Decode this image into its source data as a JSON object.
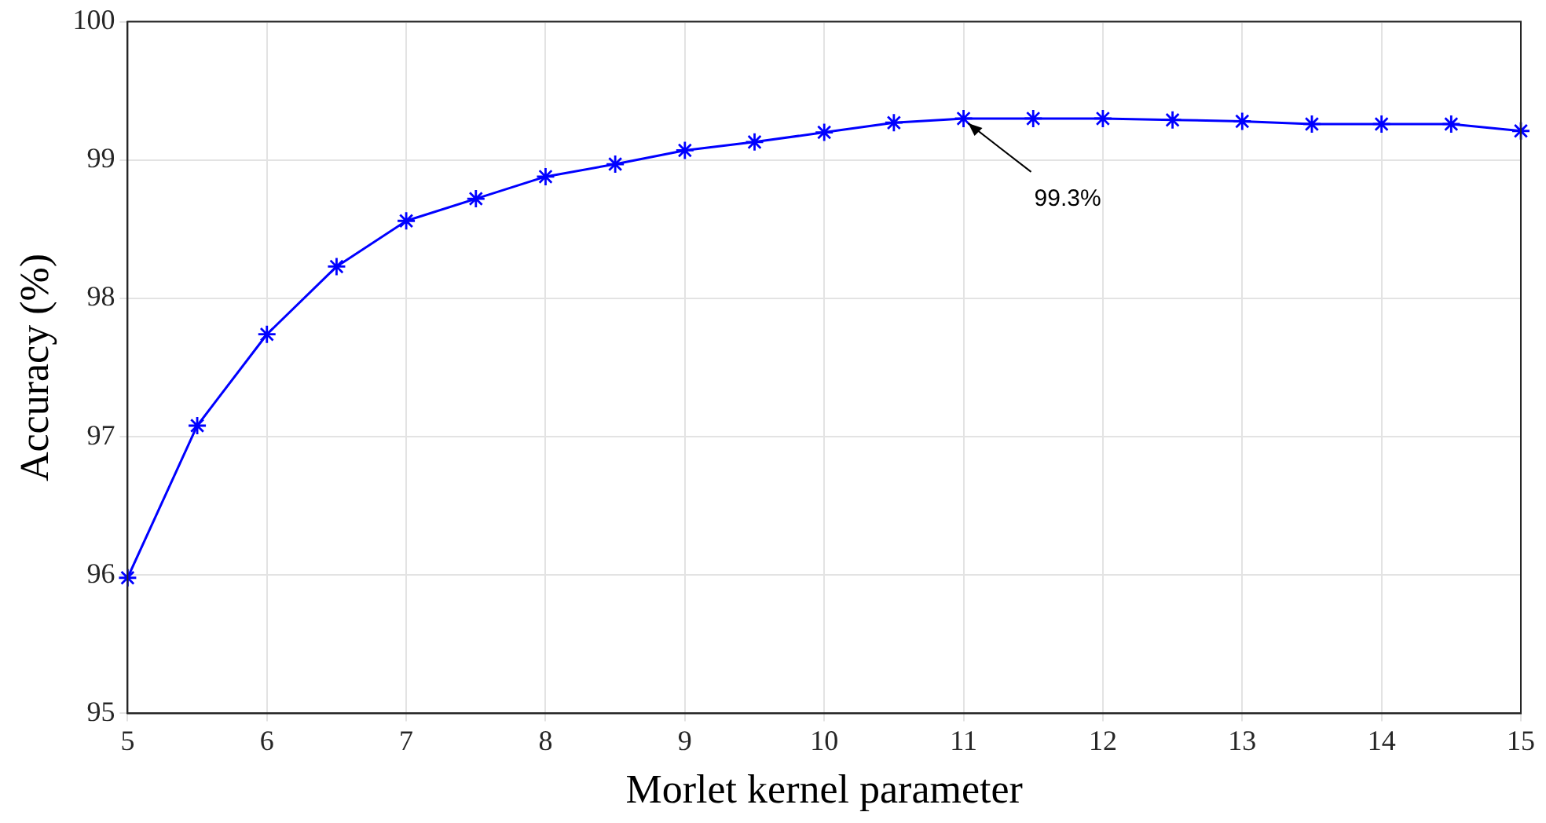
{
  "chart_data": {
    "type": "line",
    "xlabel": "Morlet kernel parameter",
    "ylabel": "Accuracy (%)",
    "x": [
      5,
      5.5,
      6,
      6.5,
      7,
      7.5,
      8,
      8.5,
      9,
      9.5,
      10,
      10.5,
      11,
      11.5,
      12,
      12.5,
      13,
      13.5,
      14,
      14.5,
      15
    ],
    "series": [
      {
        "color": "#0000ff",
        "values": [
          95.98,
          97.08,
          97.74,
          98.23,
          98.56,
          98.72,
          98.88,
          98.97,
          99.07,
          99.13,
          99.2,
          99.27,
          99.3,
          99.3,
          99.3,
          99.29,
          99.28,
          99.26,
          99.26,
          99.26,
          99.21
        ]
      }
    ],
    "xlim": [
      5,
      15
    ],
    "xticks": [
      5,
      6,
      7,
      8,
      9,
      10,
      11,
      12,
      13,
      14,
      15
    ],
    "ylim": [
      95,
      100
    ],
    "yticks": [
      95,
      96,
      97,
      98,
      99,
      100
    ],
    "grid": true,
    "marker": "star",
    "line_style": "solid",
    "annotations": [
      {
        "text": "99.3%",
        "x": 11,
        "y": 99.3
      }
    ]
  }
}
